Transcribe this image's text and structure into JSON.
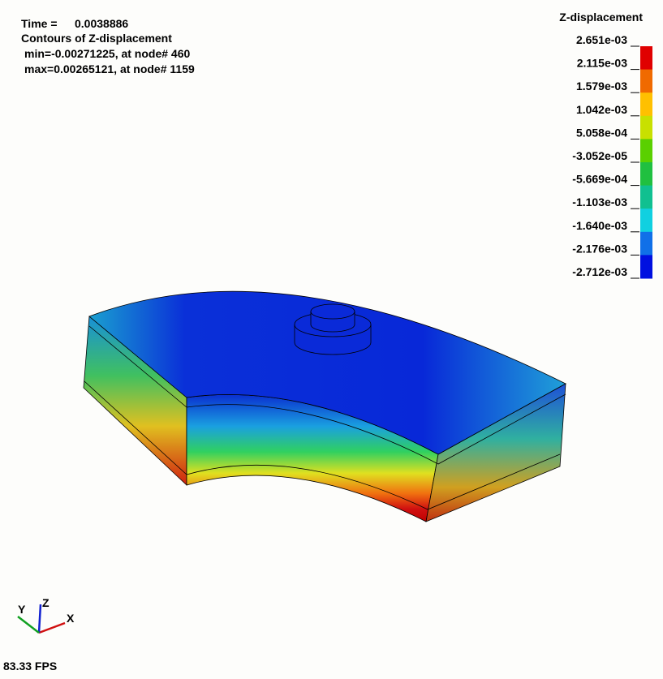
{
  "header": {
    "time_label": "Time =",
    "time_value": "0.0038886",
    "contour_title": "Contours of Z-displacement",
    "min_line": "min=-0.00271225, at node# 460",
    "max_line": "max=0.00265121, at node# 1159"
  },
  "legend": {
    "title": "Z-displacement",
    "labels": [
      "2.651e-03",
      "2.115e-03",
      "1.579e-03",
      "1.042e-03",
      "5.058e-04",
      "-3.052e-05",
      "-5.669e-04",
      "-1.103e-03",
      "-1.640e-03",
      "-2.176e-03",
      "-2.712e-03"
    ],
    "colors": [
      "#e00000",
      "#f06a00",
      "#ffc000",
      "#c8e000",
      "#5ad000",
      "#20c040",
      "#10c090",
      "#10d0e0",
      "#1070e8",
      "#0010e0"
    ]
  },
  "triad": {
    "x": "X",
    "y": "Y",
    "z": "Z"
  },
  "fps": "83.33 FPS"
}
